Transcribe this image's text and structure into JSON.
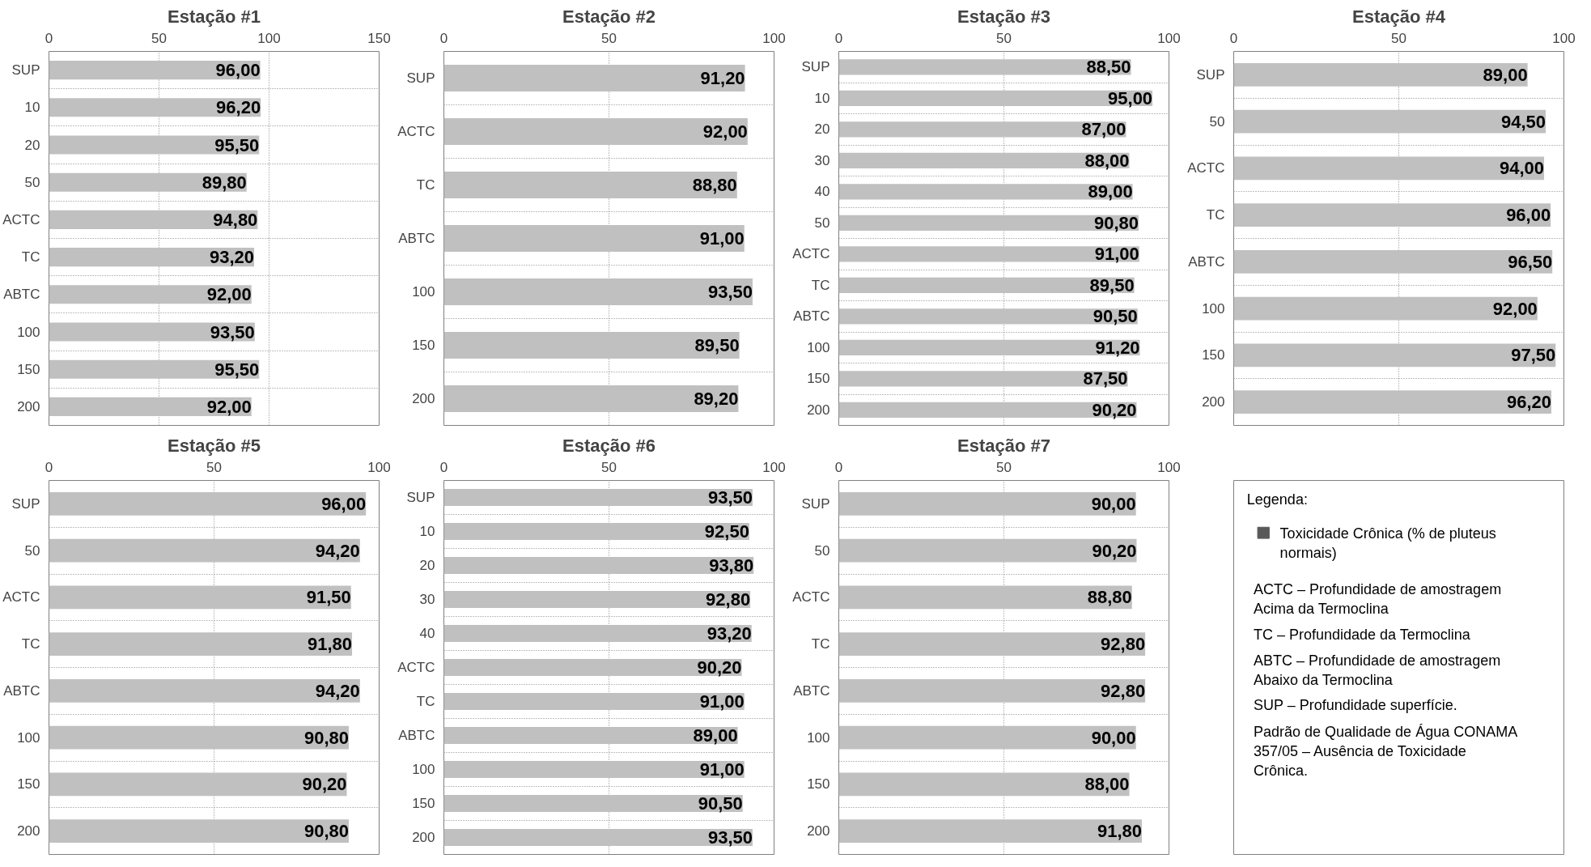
{
  "chart_data": [
    {
      "type": "bar",
      "orientation": "horizontal",
      "title": "Estação #1",
      "categories": [
        "SUP",
        "10",
        "20",
        "50",
        "ACTC",
        "TC",
        "ABTC",
        "100",
        "150",
        "200"
      ],
      "values": [
        96.0,
        96.2,
        95.5,
        89.8,
        94.8,
        93.2,
        92.0,
        93.5,
        95.5,
        92.0
      ],
      "value_labels": [
        "96,00",
        "96,20",
        "95,50",
        "89,80",
        "94,80",
        "93,20",
        "92,00",
        "93,50",
        "95,50",
        "92,00"
      ],
      "color": "#c0c0c0",
      "xlim": [
        0,
        150
      ],
      "xticks": [
        0,
        50,
        100,
        150
      ],
      "grid": true
    },
    {
      "type": "bar",
      "orientation": "horizontal",
      "title": "Estação #2",
      "categories": [
        "SUP",
        "ACTC",
        "TC",
        "ABTC",
        "100",
        "150",
        "200"
      ],
      "values": [
        91.2,
        92.0,
        88.8,
        91.0,
        93.5,
        89.5,
        89.2
      ],
      "value_labels": [
        "91,20",
        "92,00",
        "88,80",
        "91,00",
        "93,50",
        "89,50",
        "89,20"
      ],
      "color": "#c0c0c0",
      "xlim": [
        0,
        100
      ],
      "xticks": [
        0,
        50,
        100
      ],
      "grid": true
    },
    {
      "type": "bar",
      "orientation": "horizontal",
      "title": "Estação #3",
      "categories": [
        "SUP",
        "10",
        "20",
        "30",
        "40",
        "50",
        "ACTC",
        "TC",
        "ABTC",
        "100",
        "150",
        "200"
      ],
      "values": [
        88.5,
        95.0,
        87.0,
        88.0,
        89.0,
        90.8,
        91.0,
        89.5,
        90.5,
        91.2,
        87.5,
        90.2
      ],
      "value_labels": [
        "88,50",
        "95,00",
        "87,00",
        "88,00",
        "89,00",
        "90,80",
        "91,00",
        "89,50",
        "90,50",
        "91,20",
        "87,50",
        "90,20"
      ],
      "color": "#c0c0c0",
      "xlim": [
        0,
        100
      ],
      "xticks": [
        0,
        50,
        100
      ],
      "grid": true
    },
    {
      "type": "bar",
      "orientation": "horizontal",
      "title": "Estação #4",
      "categories": [
        "SUP",
        "50",
        "ACTC",
        "TC",
        "ABTC",
        "100",
        "150",
        "200"
      ],
      "values": [
        89.0,
        94.5,
        94.0,
        96.0,
        96.5,
        92.0,
        97.5,
        96.2
      ],
      "value_labels": [
        "89,00",
        "94,50",
        "94,00",
        "96,00",
        "96,50",
        "92,00",
        "97,50",
        "96,20"
      ],
      "color": "#c0c0c0",
      "xlim": [
        0,
        100
      ],
      "xticks": [
        0,
        50,
        100
      ],
      "grid": true
    },
    {
      "type": "bar",
      "orientation": "horizontal",
      "title": "Estação #5",
      "categories": [
        "SUP",
        "50",
        "ACTC",
        "TC",
        "ABTC",
        "100",
        "150",
        "200"
      ],
      "values": [
        96.0,
        94.2,
        91.5,
        91.8,
        94.2,
        90.8,
        90.2,
        90.8
      ],
      "value_labels": [
        "96,00",
        "94,20",
        "91,50",
        "91,80",
        "94,20",
        "90,80",
        "90,20",
        "90,80"
      ],
      "color": "#c0c0c0",
      "xlim": [
        0,
        100
      ],
      "xticks": [
        0,
        50,
        100
      ],
      "grid": true
    },
    {
      "type": "bar",
      "orientation": "horizontal",
      "title": "Estação #6",
      "categories": [
        "SUP",
        "10",
        "20",
        "30",
        "40",
        "ACTC",
        "TC",
        "ABTC",
        "100",
        "150",
        "200"
      ],
      "values": [
        93.5,
        92.5,
        93.8,
        92.8,
        93.2,
        90.2,
        91.0,
        89.0,
        91.0,
        90.5,
        93.5
      ],
      "value_labels": [
        "93,50",
        "92,50",
        "93,80",
        "92,80",
        "93,20",
        "90,20",
        "91,00",
        "89,00",
        "91,00",
        "90,50",
        "93,50"
      ],
      "color": "#c0c0c0",
      "xlim": [
        0,
        100
      ],
      "xticks": [
        0,
        50,
        100
      ],
      "grid": true
    },
    {
      "type": "bar",
      "orientation": "horizontal",
      "title": "Estação #7",
      "categories": [
        "SUP",
        "50",
        "ACTC",
        "TC",
        "ABTC",
        "100",
        "150",
        "200"
      ],
      "values": [
        90.0,
        90.2,
        88.8,
        92.8,
        92.8,
        90.0,
        88.0,
        91.8
      ],
      "value_labels": [
        "90,00",
        "90,20",
        "88,80",
        "92,80",
        "92,80",
        "90,00",
        "88,00",
        "91,80"
      ],
      "color": "#c0c0c0",
      "xlim": [
        0,
        100
      ],
      "xticks": [
        0,
        50,
        100
      ],
      "grid": true
    },
    {
      "type": "other",
      "title": "Legenda:",
      "series": [
        {
          "name": "Toxicidade Crônica (% de pluteus normais)",
          "color": "#595959"
        }
      ],
      "annotations": [
        "ACTC – Profundidade de amostragem Acima da Termoclina",
        "TC – Profundidade da Termoclina",
        "ABTC – Profundidade de amostragem Abaixo da Termoclina",
        "SUP – Profundidade superfície.",
        "Padrão de Qualidade de Água CONAMA 357/05 – Ausência de Toxicidade Crônica."
      ]
    }
  ]
}
